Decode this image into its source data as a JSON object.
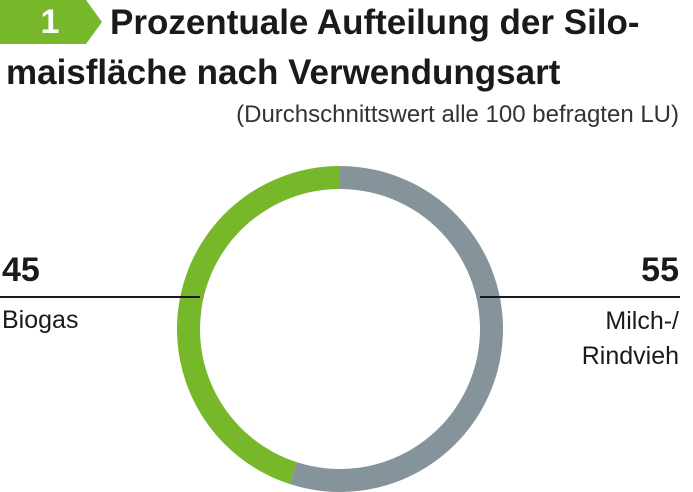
{
  "header": {
    "badge_number": "1",
    "title_line1": "Prozentuale Aufteilung der Silo-",
    "title_line2": "maisfläche nach Verwendungsart",
    "subtitle": "(Durchschnittswert alle 100 befragten LU)"
  },
  "colors": {
    "accent": "#76b82a",
    "secondary": "#85949b",
    "text": "#1a1a1a"
  },
  "chart_data": {
    "type": "pie",
    "variant": "donut",
    "title": "Prozentuale Aufteilung der Silomaisfläche nach Verwendungsart",
    "subtitle": "(Durchschnittswert alle 100 befragten LU)",
    "slices": [
      {
        "label": "Biogas",
        "value": 45,
        "value_label": "45",
        "color": "#76b82a"
      },
      {
        "label": "Milch-/ Rindvieh",
        "label_line1": "Milch-/",
        "label_line2": "Rindvieh",
        "value": 55,
        "value_label": "55",
        "color": "#85949b"
      }
    ],
    "unit": "%"
  }
}
